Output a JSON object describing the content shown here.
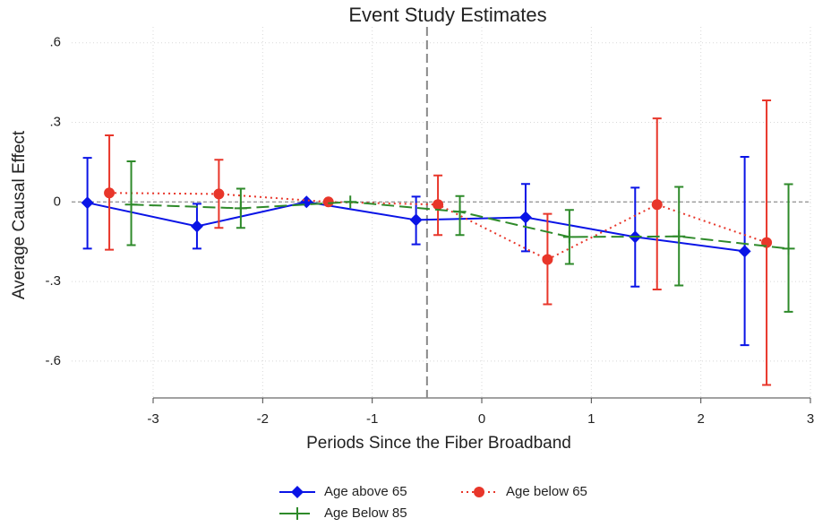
{
  "chart_data": {
    "type": "errorbar",
    "title": "Event Study Estimates",
    "xlabel": "Periods Since the Fiber Broadband",
    "ylabel": "Average Causal Effect",
    "xlim": [
      -3.6,
      3
    ],
    "ylim": [
      -0.739,
      0.66
    ],
    "xticks": [
      -3,
      -2,
      -1,
      0,
      1,
      2,
      3
    ],
    "yticks": [
      {
        "value": 0.6,
        "label": ".6"
      },
      {
        "value": 0.3,
        "label": ".3"
      },
      0,
      {
        "value": -0.3,
        "label": "-.3"
      },
      {
        "value": -0.6,
        "label": "-.6"
      }
    ],
    "grid": true,
    "vline": -0.5,
    "hline": 0,
    "legend": "bottom",
    "series": [
      {
        "name": "Age above 65",
        "color": "#0a14e6",
        "marker": "diamond",
        "dash": "none",
        "x": [
          -3.6,
          -2.6,
          -1.6,
          -0.6,
          0.4,
          1.4,
          2.4
        ],
        "values": [
          -0.003,
          -0.092,
          0,
          -0.068,
          -0.058,
          -0.132,
          -0.186
        ],
        "lower": [
          -0.176,
          -0.176,
          null,
          -0.16,
          -0.186,
          -0.319,
          -0.54
        ],
        "upper": [
          0.166,
          -0.007,
          null,
          0.02,
          0.068,
          0.054,
          0.17
        ]
      },
      {
        "name": "Age below 65",
        "color": "#e8362a",
        "marker": "circle",
        "dash": "2,4",
        "x": [
          -3.4,
          -2.4,
          -1.4,
          -0.4,
          0.6,
          1.6,
          2.6
        ],
        "values": [
          0.034,
          0.03,
          0,
          -0.01,
          -0.217,
          -0.01,
          -0.153
        ],
        "lower": [
          -0.18,
          -0.098,
          null,
          -0.125,
          -0.386,
          -0.33,
          -0.69
        ],
        "upper": [
          0.251,
          0.159,
          null,
          0.1,
          -0.045,
          0.315,
          0.383
        ]
      },
      {
        "name": "Age Below 85",
        "color": "#2e8a2a",
        "marker": "plus",
        "dash": "14,6",
        "x": [
          -3.2,
          -2.2,
          -1.2,
          -0.2,
          0.8,
          1.8,
          2.8
        ],
        "values": [
          -0.01,
          -0.024,
          0,
          -0.037,
          -0.132,
          -0.13,
          -0.176
        ],
        "lower": [
          -0.163,
          -0.098,
          null,
          -0.125,
          -0.234,
          -0.315,
          -0.414
        ],
        "upper": [
          0.153,
          0.05,
          null,
          0.022,
          -0.03,
          0.057,
          0.067
        ]
      }
    ]
  }
}
